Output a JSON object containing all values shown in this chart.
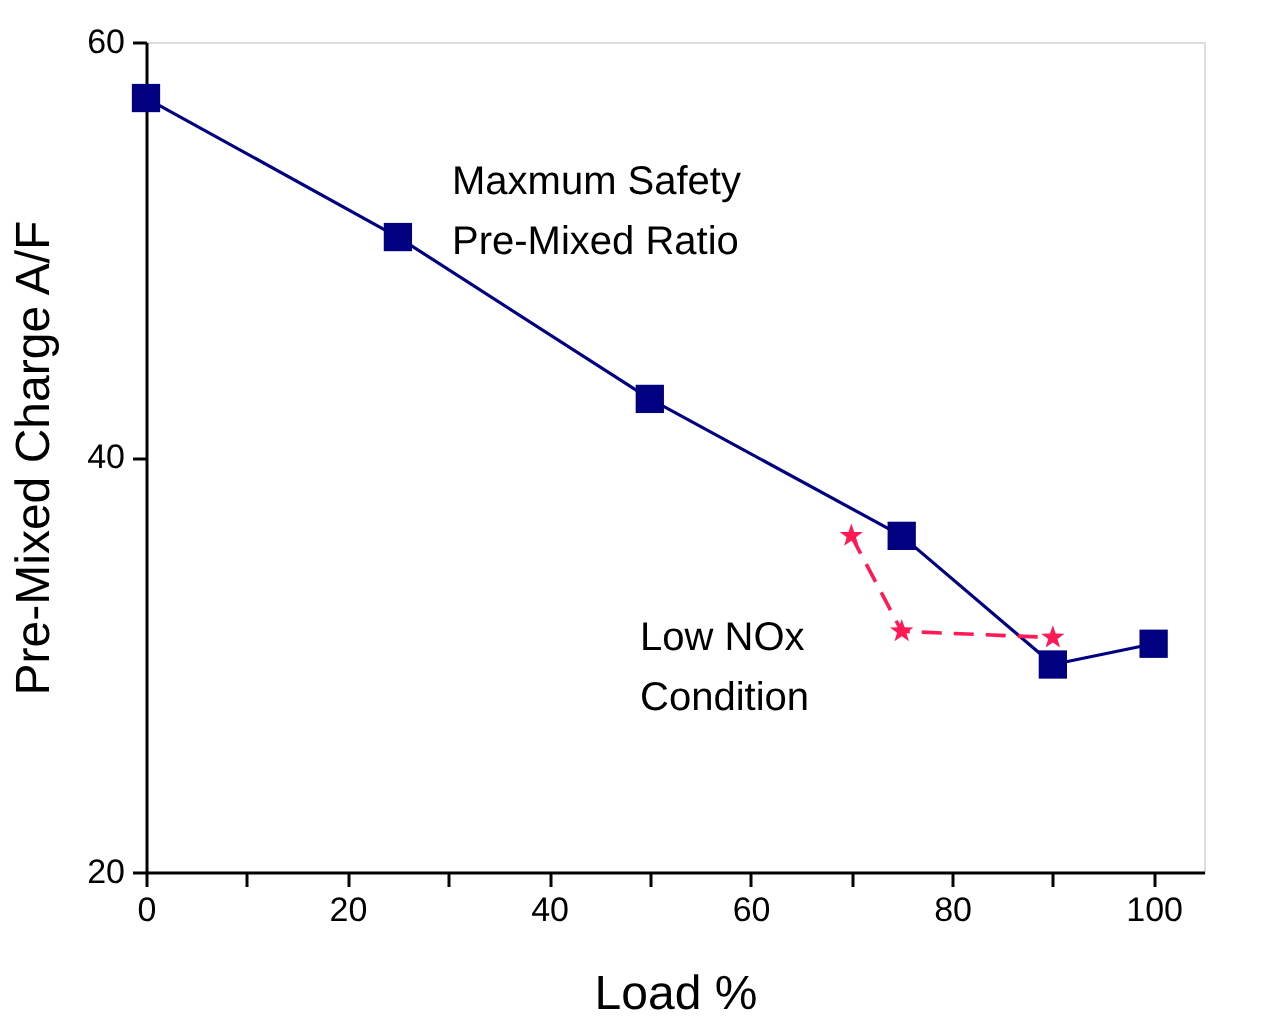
{
  "chart_data": {
    "type": "line",
    "xlabel": "Load  %",
    "ylabel": "Pre-Mixed Charge A/F",
    "xlim": [
      0,
      105
    ],
    "ylim": [
      20,
      60
    ],
    "xticks": [
      0,
      {
        "value": 10,
        "label": null
      },
      20,
      {
        "value": 30,
        "label": null
      },
      40,
      {
        "value": 50,
        "label": null
      },
      60,
      {
        "value": 70,
        "label": null
      },
      80,
      {
        "value": 90,
        "label": null
      },
      100
    ],
    "yticks": [
      20,
      40,
      60
    ],
    "grid": false,
    "legend": false,
    "series": [
      {
        "name": "Maxmum Safety\nPre-Mixed Ratio",
        "color": "#000080",
        "marker": "square",
        "line_style": "solid",
        "x": [
          0,
          25,
          50,
          75,
          90,
          100
        ],
        "values": [
          57.3,
          50.6,
          42.8,
          36.2,
          30.0,
          31.0
        ]
      },
      {
        "name": "Low NOx\nCondition",
        "color": "#ff1a55",
        "marker": "star",
        "line_style": "dashed",
        "x": [
          70,
          75,
          90
        ],
        "values": [
          36.2,
          31.6,
          31.3
        ]
      }
    ]
  }
}
